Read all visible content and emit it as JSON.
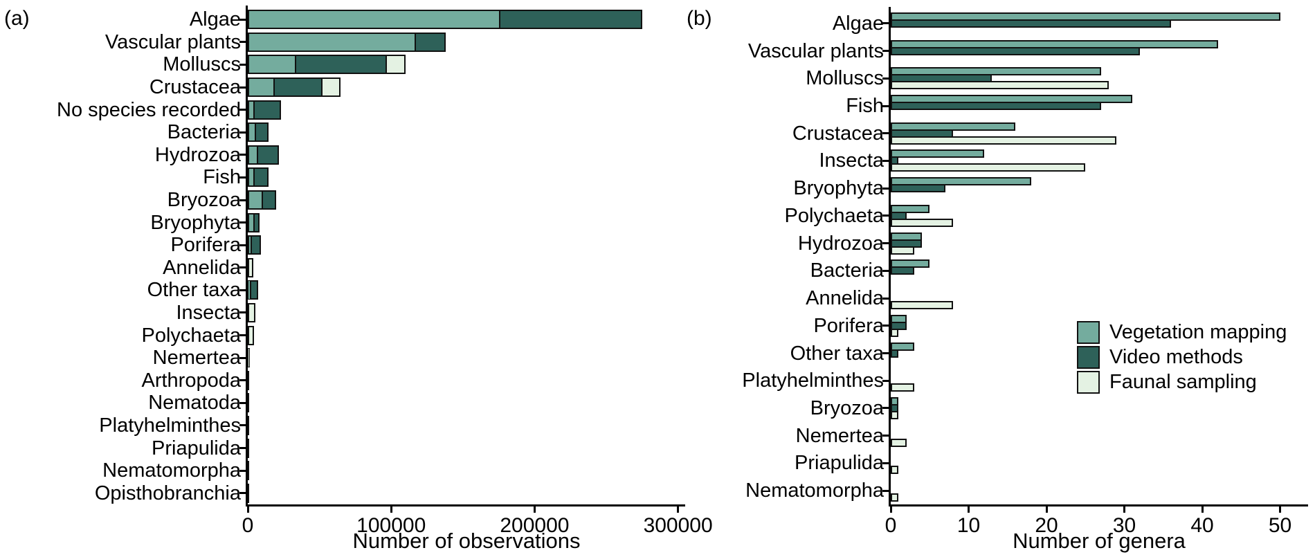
{
  "figure_type": "two-panel horizontal bar figure",
  "colors": {
    "vegetation_mapping": "#74AC9E",
    "video_methods": "#2E6159",
    "faunal_sampling": "#E4F2E3",
    "bar_border": "#111111",
    "axis": "#000000",
    "background": "#FFFFFF"
  },
  "chart_data": [
    {
      "type": "bar",
      "orientation": "horizontal",
      "grouping": "stacked",
      "panel_label": "(a)",
      "xlabel": "Number of observations",
      "xlim": [
        0,
        305000
      ],
      "xticks": [
        0,
        100000,
        200000,
        300000
      ],
      "xtick_labels": [
        "0",
        "100000",
        "200000",
        "300000"
      ],
      "categories": [
        "Algae",
        "Vascular plants",
        "Molluscs",
        "Crustacea",
        "No species recorded",
        "Bacteria",
        "Hydrozoa",
        "Fish",
        "Bryozoa",
        "Bryophyta",
        "Porifera",
        "Annelida",
        "Other taxa",
        "Insecta",
        "Polychaeta",
        "Nemertea",
        "Arthropoda",
        "Nematoda",
        "Platyhelminthes",
        "Priapulida",
        "Nematomorpha",
        "Opisthobranchia"
      ],
      "series": [
        {
          "name": "Vegetation mapping",
          "color": "#74AC9E",
          "values": [
            176000,
            117500,
            34000,
            19000,
            5000,
            6000,
            7000,
            5000,
            10500,
            5000,
            3000,
            0,
            2200,
            0,
            0,
            0,
            0,
            0,
            0,
            0,
            0,
            150
          ]
        },
        {
          "name": "Video methods",
          "color": "#2E6159",
          "values": [
            99000,
            20500,
            63000,
            33000,
            18000,
            8500,
            14500,
            9500,
            9500,
            3000,
            6000,
            0,
            5100,
            0,
            0,
            0,
            1000,
            700,
            0,
            0,
            0,
            0
          ]
        },
        {
          "name": "Faunal sampling",
          "color": "#E4F2E3",
          "values": [
            0,
            0,
            13000,
            12500,
            0,
            0,
            0,
            0,
            0,
            0,
            0,
            3700,
            0,
            5200,
            4400,
            1600,
            0,
            0,
            500,
            350,
            250,
            0
          ]
        }
      ]
    },
    {
      "type": "bar",
      "orientation": "horizontal",
      "grouping": "grouped",
      "panel_label": "(b)",
      "xlabel": "Number of genera",
      "xlim": [
        0,
        53.6
      ],
      "xticks": [
        0,
        10,
        20,
        30,
        40,
        50
      ],
      "xtick_labels": [
        "0",
        "10",
        "20",
        "30",
        "40",
        "50"
      ],
      "categories": [
        "Algae",
        "Vascular plants",
        "Molluscs",
        "Fish",
        "Crustacea",
        "Insecta",
        "Bryophyta",
        "Polychaeta",
        "Hydrozoa",
        "Bacteria",
        "Annelida",
        "Porifera",
        "Other taxa",
        "Platyhelminthes",
        "Bryozoa",
        "Nemertea",
        "Priapulida",
        "Nematomorpha"
      ],
      "series": [
        {
          "name": "Vegetation mapping",
          "color": "#74AC9E",
          "values": [
            50,
            42,
            27,
            31,
            16,
            12,
            18,
            5,
            4,
            5,
            0,
            2,
            3,
            0,
            1,
            0,
            0,
            0
          ]
        },
        {
          "name": "Video methods",
          "color": "#2E6159",
          "values": [
            36,
            32,
            13,
            27,
            8,
            1,
            7,
            2,
            4,
            3,
            0,
            2,
            1,
            0,
            1,
            0,
            0,
            0
          ]
        },
        {
          "name": "Faunal sampling",
          "color": "#E4F2E3",
          "values": [
            0,
            0,
            28,
            0,
            29,
            25,
            0,
            8,
            3,
            0,
            8,
            1,
            0,
            3,
            1,
            2,
            1,
            1
          ]
        }
      ],
      "legend": {
        "position": "right-middle",
        "entries": [
          {
            "label": "Vegetation mapping",
            "color": "#74AC9E"
          },
          {
            "label": "Video methods",
            "color": "#2E6159"
          },
          {
            "label": "Faunal sampling",
            "color": "#E4F2E3"
          }
        ]
      }
    }
  ]
}
